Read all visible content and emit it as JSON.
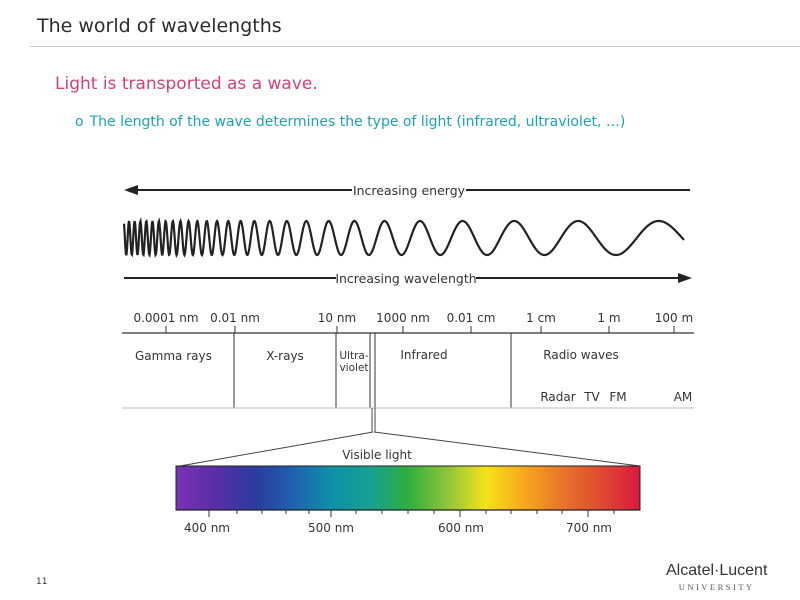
{
  "slide": {
    "title": "The world of wavelengths",
    "bullet_main": "Light is transported as a wave.",
    "bullet_sub_marker": "o",
    "bullet_sub": "The length of the wave determines the type of light (infrared, ultraviolet, …)",
    "page_number": "11"
  },
  "diagram": {
    "energy_label": "Increasing energy",
    "wavelength_label": "Increasing wavelength",
    "scale_labels": [
      "0.0001 nm",
      "0.01 nm",
      "10 nm",
      "1000 nm",
      "0.01 cm",
      "1 cm",
      "1 m",
      "100 m"
    ],
    "bands": {
      "gamma": "Gamma rays",
      "xrays": "X-rays",
      "ultra_line1": "Ultra-",
      "ultra_line2": "violet",
      "infrared": "Infrared",
      "radio": "Radio waves",
      "radar": "Radar",
      "tv": "TV",
      "fm": "FM",
      "am": "AM"
    },
    "visible_label": "Visible light",
    "visible_ticks": [
      "400 nm",
      "500 nm",
      "600 nm",
      "700 nm"
    ],
    "spectrum_colors": [
      "#7b34b5",
      "#5a2ea8",
      "#2e3a9e",
      "#1f5fb0",
      "#0f8fa8",
      "#17a092",
      "#2fae3e",
      "#8cc43a",
      "#f3e21b",
      "#f7a81c",
      "#e8742a",
      "#df4a32",
      "#d8193f"
    ]
  },
  "logo": {
    "main": "Alcatel·Lucent",
    "sub": "UNIVERSITY"
  }
}
